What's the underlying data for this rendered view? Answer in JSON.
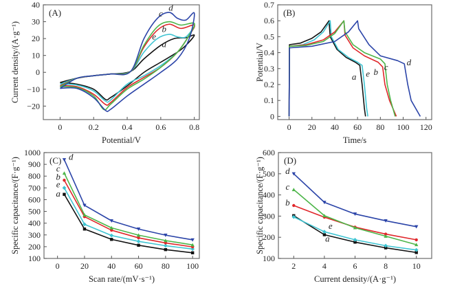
{
  "colors": {
    "a": "#111111",
    "b": "#e0262a",
    "c": "#4cb548",
    "d": "#2b44a8",
    "e": "#3fc4d2"
  },
  "chart_data": [
    {
      "id": "A",
      "type": "line",
      "panel_label": "(A)",
      "title": "",
      "xlabel": "Potential/V",
      "ylabel": "Current density/(A·g⁻¹)",
      "xlim": [
        -0.1,
        0.83
      ],
      "ylim": [
        -28,
        40
      ],
      "xticks": [
        0,
        0.2,
        0.4,
        0.6,
        0.8
      ],
      "xtick_labels": [
        "0",
        "0.2",
        "0.4",
        "0.6",
        "0.8"
      ],
      "yticks": [
        -20,
        -10,
        0,
        10,
        20,
        30,
        40
      ],
      "ytick_labels": [
        "−20",
        "−10",
        "0",
        "10",
        "20",
        "30",
        "40"
      ],
      "series": [
        {
          "name": "a",
          "points": [
            [
              0,
              -6
            ],
            [
              0.1,
              -3.5
            ],
            [
              0.2,
              -2
            ],
            [
              0.3,
              -1
            ],
            [
              0.42,
              0.5
            ],
            [
              0.5,
              8
            ],
            [
              0.6,
              16
            ],
            [
              0.68,
              20
            ],
            [
              0.75,
              20.5
            ],
            [
              0.8,
              22
            ],
            [
              0.75,
              16
            ],
            [
              0.7,
              12
            ],
            [
              0.6,
              6
            ],
            [
              0.5,
              0
            ],
            [
              0.4,
              -8
            ],
            [
              0.3,
              -15
            ],
            [
              0.27,
              -16
            ],
            [
              0.2,
              -10
            ],
            [
              0.1,
              -7
            ],
            [
              0,
              -6
            ]
          ]
        },
        {
          "name": "b",
          "points": [
            [
              0,
              -8
            ],
            [
              0.1,
              -3.5
            ],
            [
              0.2,
              -2
            ],
            [
              0.3,
              -1
            ],
            [
              0.42,
              0.5
            ],
            [
              0.5,
              15
            ],
            [
              0.58,
              25
            ],
            [
              0.65,
              28.5
            ],
            [
              0.72,
              26
            ],
            [
              0.8,
              28
            ],
            [
              0.77,
              22
            ],
            [
              0.7,
              12
            ],
            [
              0.6,
              3
            ],
            [
              0.5,
              -3
            ],
            [
              0.4,
              -9
            ],
            [
              0.3,
              -18
            ],
            [
              0.27,
              -19
            ],
            [
              0.2,
              -13
            ],
            [
              0.1,
              -8.5
            ],
            [
              0,
              -8
            ]
          ]
        },
        {
          "name": "c",
          "points": [
            [
              0,
              -8.5
            ],
            [
              0.1,
              -3.5
            ],
            [
              0.2,
              -2
            ],
            [
              0.3,
              -1
            ],
            [
              0.42,
              0.5
            ],
            [
              0.5,
              16
            ],
            [
              0.58,
              27
            ],
            [
              0.65,
              30
            ],
            [
              0.72,
              28
            ],
            [
              0.8,
              29
            ],
            [
              0.77,
              22
            ],
            [
              0.7,
              12
            ],
            [
              0.6,
              3
            ],
            [
              0.5,
              -4
            ],
            [
              0.4,
              -10
            ],
            [
              0.3,
              -19
            ],
            [
              0.26,
              -22
            ],
            [
              0.2,
              -14
            ],
            [
              0.1,
              -9
            ],
            [
              0,
              -8.5
            ]
          ]
        },
        {
          "name": "d",
          "points": [
            [
              0,
              -9.5
            ],
            [
              0.1,
              -3.5
            ],
            [
              0.2,
              -2
            ],
            [
              0.3,
              -1
            ],
            [
              0.42,
              0.5
            ],
            [
              0.5,
              20
            ],
            [
              0.58,
              32
            ],
            [
              0.65,
              35.5
            ],
            [
              0.7,
              32
            ],
            [
              0.75,
              31
            ],
            [
              0.8,
              35
            ],
            [
              0.77,
              20
            ],
            [
              0.7,
              8
            ],
            [
              0.6,
              0
            ],
            [
              0.5,
              -7
            ],
            [
              0.4,
              -14
            ],
            [
              0.3,
              -22
            ],
            [
              0.27,
              -22.5
            ],
            [
              0.2,
              -15
            ],
            [
              0.1,
              -9.5
            ],
            [
              0,
              -9.5
            ]
          ]
        },
        {
          "name": "e",
          "points": [
            [
              0,
              -7
            ],
            [
              0.1,
              -3.5
            ],
            [
              0.2,
              -2
            ],
            [
              0.3,
              -1
            ],
            [
              0.42,
              0.5
            ],
            [
              0.5,
              12
            ],
            [
              0.58,
              20
            ],
            [
              0.65,
              22.5
            ],
            [
              0.7,
              21
            ],
            [
              0.75,
              21
            ],
            [
              0.8,
              27
            ],
            [
              0.77,
              22
            ],
            [
              0.7,
              12
            ],
            [
              0.6,
              4
            ],
            [
              0.5,
              -2
            ],
            [
              0.4,
              -7
            ],
            [
              0.3,
              -16.5
            ],
            [
              0.27,
              -17
            ],
            [
              0.2,
              -11
            ],
            [
              0.1,
              -7.5
            ],
            [
              0,
              -7
            ]
          ]
        }
      ],
      "annotations": [
        {
          "text": "a",
          "x": 0.62,
          "y": 15
        },
        {
          "text": "b",
          "x": 0.62,
          "y": 24
        },
        {
          "text": "c",
          "x": 0.6,
          "y": 33
        },
        {
          "text": "d",
          "x": 0.66,
          "y": 36.5
        },
        {
          "text": "e",
          "x": 0.56,
          "y": 19.5
        }
      ]
    },
    {
      "id": "B",
      "type": "line",
      "panel_label": "(B)",
      "title": "",
      "xlabel": "Time/s",
      "ylabel": "Potential/V",
      "xlim": [
        -10,
        125
      ],
      "ylim": [
        -0.02,
        0.7
      ],
      "xticks": [
        0,
        20,
        40,
        60,
        80,
        100,
        120
      ],
      "xtick_labels": [
        "0",
        "20",
        "40",
        "60",
        "80",
        "100",
        "120"
      ],
      "yticks": [
        0,
        0.1,
        0.2,
        0.3,
        0.4,
        0.5,
        0.6,
        0.7
      ],
      "ytick_labels": [
        "0",
        "0.1",
        "0.2",
        "0.3",
        "0.4",
        "0.5",
        "0.6",
        "0.7"
      ],
      "series": [
        {
          "name": "a",
          "points": [
            [
              0,
              0
            ],
            [
              0.3,
              0.45
            ],
            [
              10,
              0.46
            ],
            [
              20,
              0.49
            ],
            [
              28,
              0.53
            ],
            [
              35,
              0.6
            ],
            [
              36,
              0.5
            ],
            [
              42,
              0.42
            ],
            [
              50,
              0.37
            ],
            [
              58,
              0.34
            ],
            [
              62,
              0.32
            ],
            [
              64,
              0.2
            ],
            [
              66,
              0.05
            ],
            [
              67,
              0
            ]
          ]
        },
        {
          "name": "b",
          "points": [
            [
              0,
              0
            ],
            [
              0.3,
              0.44
            ],
            [
              15,
              0.45
            ],
            [
              30,
              0.48
            ],
            [
              40,
              0.53
            ],
            [
              48,
              0.6
            ],
            [
              49,
              0.51
            ],
            [
              56,
              0.43
            ],
            [
              66,
              0.38
            ],
            [
              78,
              0.34
            ],
            [
              82,
              0.31
            ],
            [
              84,
              0.2
            ],
            [
              88,
              0.1
            ],
            [
              94,
              0
            ]
          ]
        },
        {
          "name": "c",
          "points": [
            [
              0,
              0
            ],
            [
              0.3,
              0.44
            ],
            [
              15,
              0.445
            ],
            [
              30,
              0.47
            ],
            [
              40,
              0.52
            ],
            [
              48,
              0.6
            ],
            [
              49,
              0.53
            ],
            [
              56,
              0.45
            ],
            [
              66,
              0.4
            ],
            [
              80,
              0.36
            ],
            [
              84,
              0.33
            ],
            [
              86,
              0.2
            ],
            [
              89,
              0.1
            ],
            [
              93,
              0
            ]
          ]
        },
        {
          "name": "d",
          "points": [
            [
              0,
              0
            ],
            [
              0.3,
              0.43
            ],
            [
              20,
              0.44
            ],
            [
              40,
              0.47
            ],
            [
              52,
              0.53
            ],
            [
              60,
              0.6
            ],
            [
              61,
              0.55
            ],
            [
              70,
              0.45
            ],
            [
              80,
              0.38
            ],
            [
              95,
              0.35
            ],
            [
              101,
              0.33
            ],
            [
              104,
              0.2
            ],
            [
              107,
              0.1
            ],
            [
              115,
              0
            ]
          ]
        },
        {
          "name": "e",
          "points": [
            [
              0,
              0
            ],
            [
              0.3,
              0.44
            ],
            [
              12,
              0.45
            ],
            [
              22,
              0.48
            ],
            [
              30,
              0.53
            ],
            [
              36,
              0.6
            ],
            [
              37,
              0.5
            ],
            [
              43,
              0.42
            ],
            [
              52,
              0.37
            ],
            [
              60,
              0.34
            ],
            [
              64,
              0.32
            ],
            [
              66,
              0.2
            ],
            [
              68,
              0.05
            ],
            [
              69,
              0
            ]
          ]
        }
      ],
      "annotations": [
        {
          "text": "a",
          "x": 57,
          "y": 0.23
        },
        {
          "text": "e",
          "x": 69,
          "y": 0.25
        },
        {
          "text": "b",
          "x": 76,
          "y": 0.26
        },
        {
          "text": "c",
          "x": 85,
          "y": 0.29
        },
        {
          "text": "d",
          "x": 105,
          "y": 0.32
        }
      ]
    },
    {
      "id": "C",
      "type": "line",
      "panel_label": "(C)",
      "title": "",
      "xlabel": "Scan rate/(mV·s⁻¹)",
      "ylabel": "Specific capacitance/(F·g⁻¹)",
      "xlim": [
        -10,
        105
      ],
      "ylim": [
        100,
        1000
      ],
      "xticks": [
        0,
        20,
        40,
        60,
        80,
        100
      ],
      "xtick_labels": [
        "0",
        "20",
        "40",
        "60",
        "80",
        "100"
      ],
      "yticks": [
        100,
        200,
        300,
        400,
        500,
        600,
        700,
        800,
        900,
        1000
      ],
      "ytick_labels": [
        "100",
        "200",
        "300",
        "400",
        "500",
        "600",
        "700",
        "800",
        "900",
        "1000"
      ],
      "x": [
        5,
        20,
        40,
        60,
        80,
        100
      ],
      "series": [
        {
          "name": "a",
          "marker": "square",
          "values": [
            645,
            350,
            262,
            212,
            175,
            148
          ]
        },
        {
          "name": "b",
          "marker": "circle",
          "values": [
            765,
            455,
            340,
            275,
            232,
            198
          ]
        },
        {
          "name": "c",
          "marker": "triangle-up",
          "values": [
            825,
            470,
            360,
            298,
            252,
            215
          ]
        },
        {
          "name": "d",
          "marker": "triangle-down",
          "values": [
            940,
            552,
            420,
            350,
            298,
            258
          ]
        },
        {
          "name": "e",
          "marker": "diamond",
          "values": [
            700,
            390,
            295,
            245,
            208,
            180
          ]
        }
      ],
      "annotations": [
        {
          "text": "d",
          "x": 10,
          "y": 940
        },
        {
          "text": "c",
          "x": 0.5,
          "y": 840
        },
        {
          "text": "b",
          "x": 0.5,
          "y": 770
        },
        {
          "text": "e",
          "x": 0.5,
          "y": 705
        },
        {
          "text": "a",
          "x": 0.5,
          "y": 625
        }
      ]
    },
    {
      "id": "D",
      "type": "line",
      "panel_label": "(D)",
      "title": "",
      "xlabel": "Current density/(A·g⁻¹)",
      "ylabel": "Specific capacitance/(F·g⁻¹)",
      "xlim": [
        1,
        11
      ],
      "ylim": [
        100,
        600
      ],
      "xticks": [
        2,
        4,
        6,
        8,
        10
      ],
      "xtick_labels": [
        "2",
        "4",
        "6",
        "8",
        "10"
      ],
      "yticks": [
        100,
        200,
        300,
        400,
        500,
        600
      ],
      "ytick_labels": [
        "100",
        "200",
        "300",
        "400",
        "500",
        "600"
      ],
      "x": [
        2,
        4,
        6,
        8,
        10
      ],
      "series": [
        {
          "name": "a",
          "marker": "square",
          "values": [
            302,
            212,
            177,
            150,
            128
          ]
        },
        {
          "name": "b",
          "marker": "circle",
          "values": [
            350,
            295,
            248,
            215,
            188
          ]
        },
        {
          "name": "c",
          "marker": "triangle-up",
          "values": [
            425,
            302,
            245,
            205,
            165
          ]
        },
        {
          "name": "d",
          "marker": "triangle-down",
          "values": [
            500,
            365,
            310,
            278,
            250
          ]
        },
        {
          "name": "e",
          "marker": "diamond",
          "values": [
            296,
            226,
            188,
            160,
            140
          ]
        }
      ],
      "annotations": [
        {
          "text": "d",
          "x": 1.6,
          "y": 500
        },
        {
          "text": "c",
          "x": 1.6,
          "y": 425
        },
        {
          "text": "b",
          "x": 1.6,
          "y": 350
        },
        {
          "text": "e",
          "x": 4.4,
          "y": 240
        },
        {
          "text": "a",
          "x": 4.2,
          "y": 180
        }
      ]
    }
  ]
}
